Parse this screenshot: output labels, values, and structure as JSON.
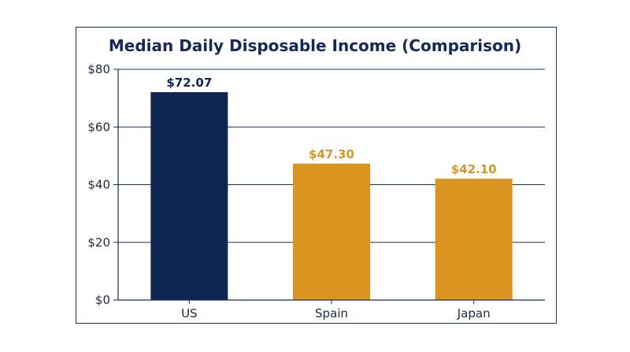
{
  "chart_data": {
    "type": "bar",
    "title": "Median Daily Disposable Income (Comparison)",
    "categories": [
      "US",
      "Spain",
      "Japan"
    ],
    "values": [
      72.07,
      47.3,
      42.1
    ],
    "value_labels": [
      "$72.07",
      "$47.30",
      "$42.10"
    ],
    "y_ticks": [
      0,
      20,
      40,
      60,
      80
    ],
    "y_tick_labels": [
      "$0",
      "$20",
      "$40",
      "$60",
      "$80"
    ],
    "ylim": [
      0,
      80
    ],
    "grid": true,
    "xlabel": "",
    "ylabel": "",
    "colors": {
      "US": "#0f2654",
      "Spain": "#d9951f",
      "Japan": "#d9951f"
    },
    "label_colors": {
      "US": "#0f2654",
      "Spain": "#d9951f",
      "Japan": "#d9951f"
    }
  }
}
